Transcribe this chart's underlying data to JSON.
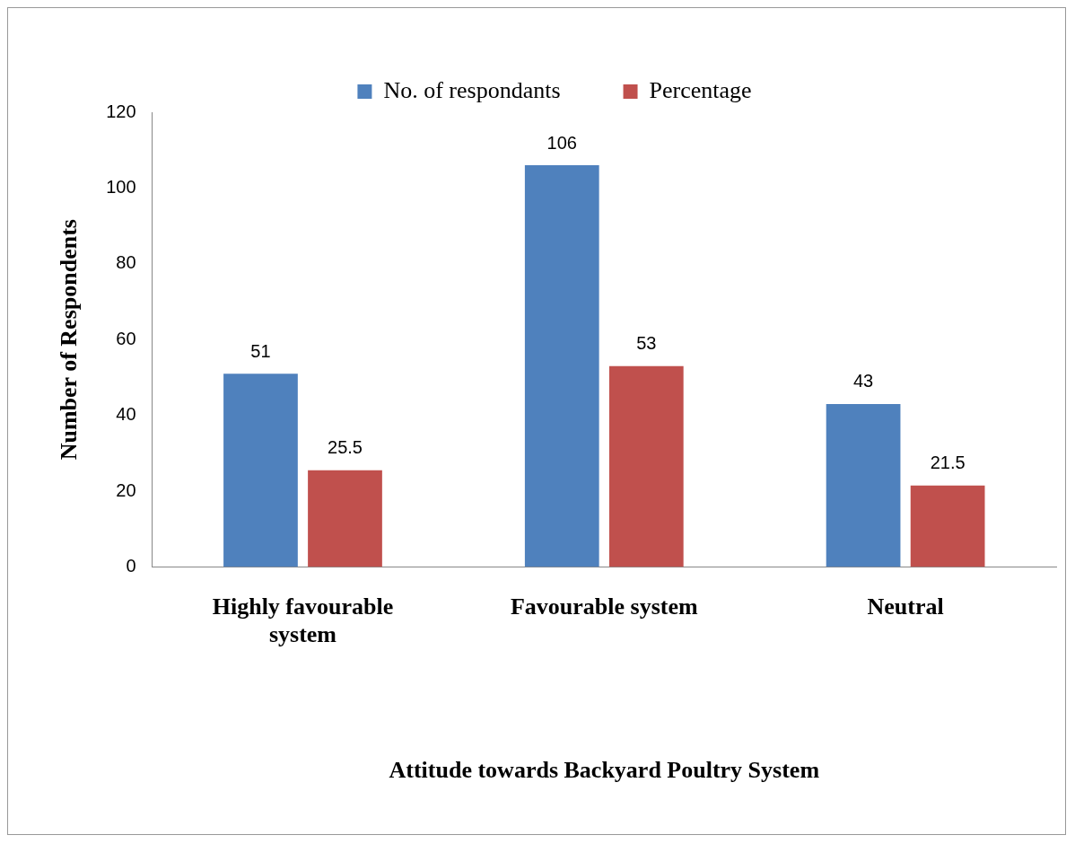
{
  "chart_data": {
    "type": "bar",
    "xlabel": "Attitude towards Backyard Poultry System",
    "ylabel": "Number of Respondents",
    "categories": [
      "Highly favourable system",
      "Favourable system",
      "Neutral"
    ],
    "series": [
      {
        "name": "No. of respondants",
        "color": "#4f81bd",
        "values": [
          51,
          106,
          43
        ]
      },
      {
        "name": "Percentage",
        "color": "#c0504d",
        "values": [
          25.5,
          53,
          21.5
        ]
      }
    ],
    "ylim": [
      0,
      120
    ],
    "yticks": [
      0,
      20,
      40,
      60,
      80,
      100,
      120
    ],
    "grid": false,
    "legend": "top",
    "data_labels": true
  }
}
